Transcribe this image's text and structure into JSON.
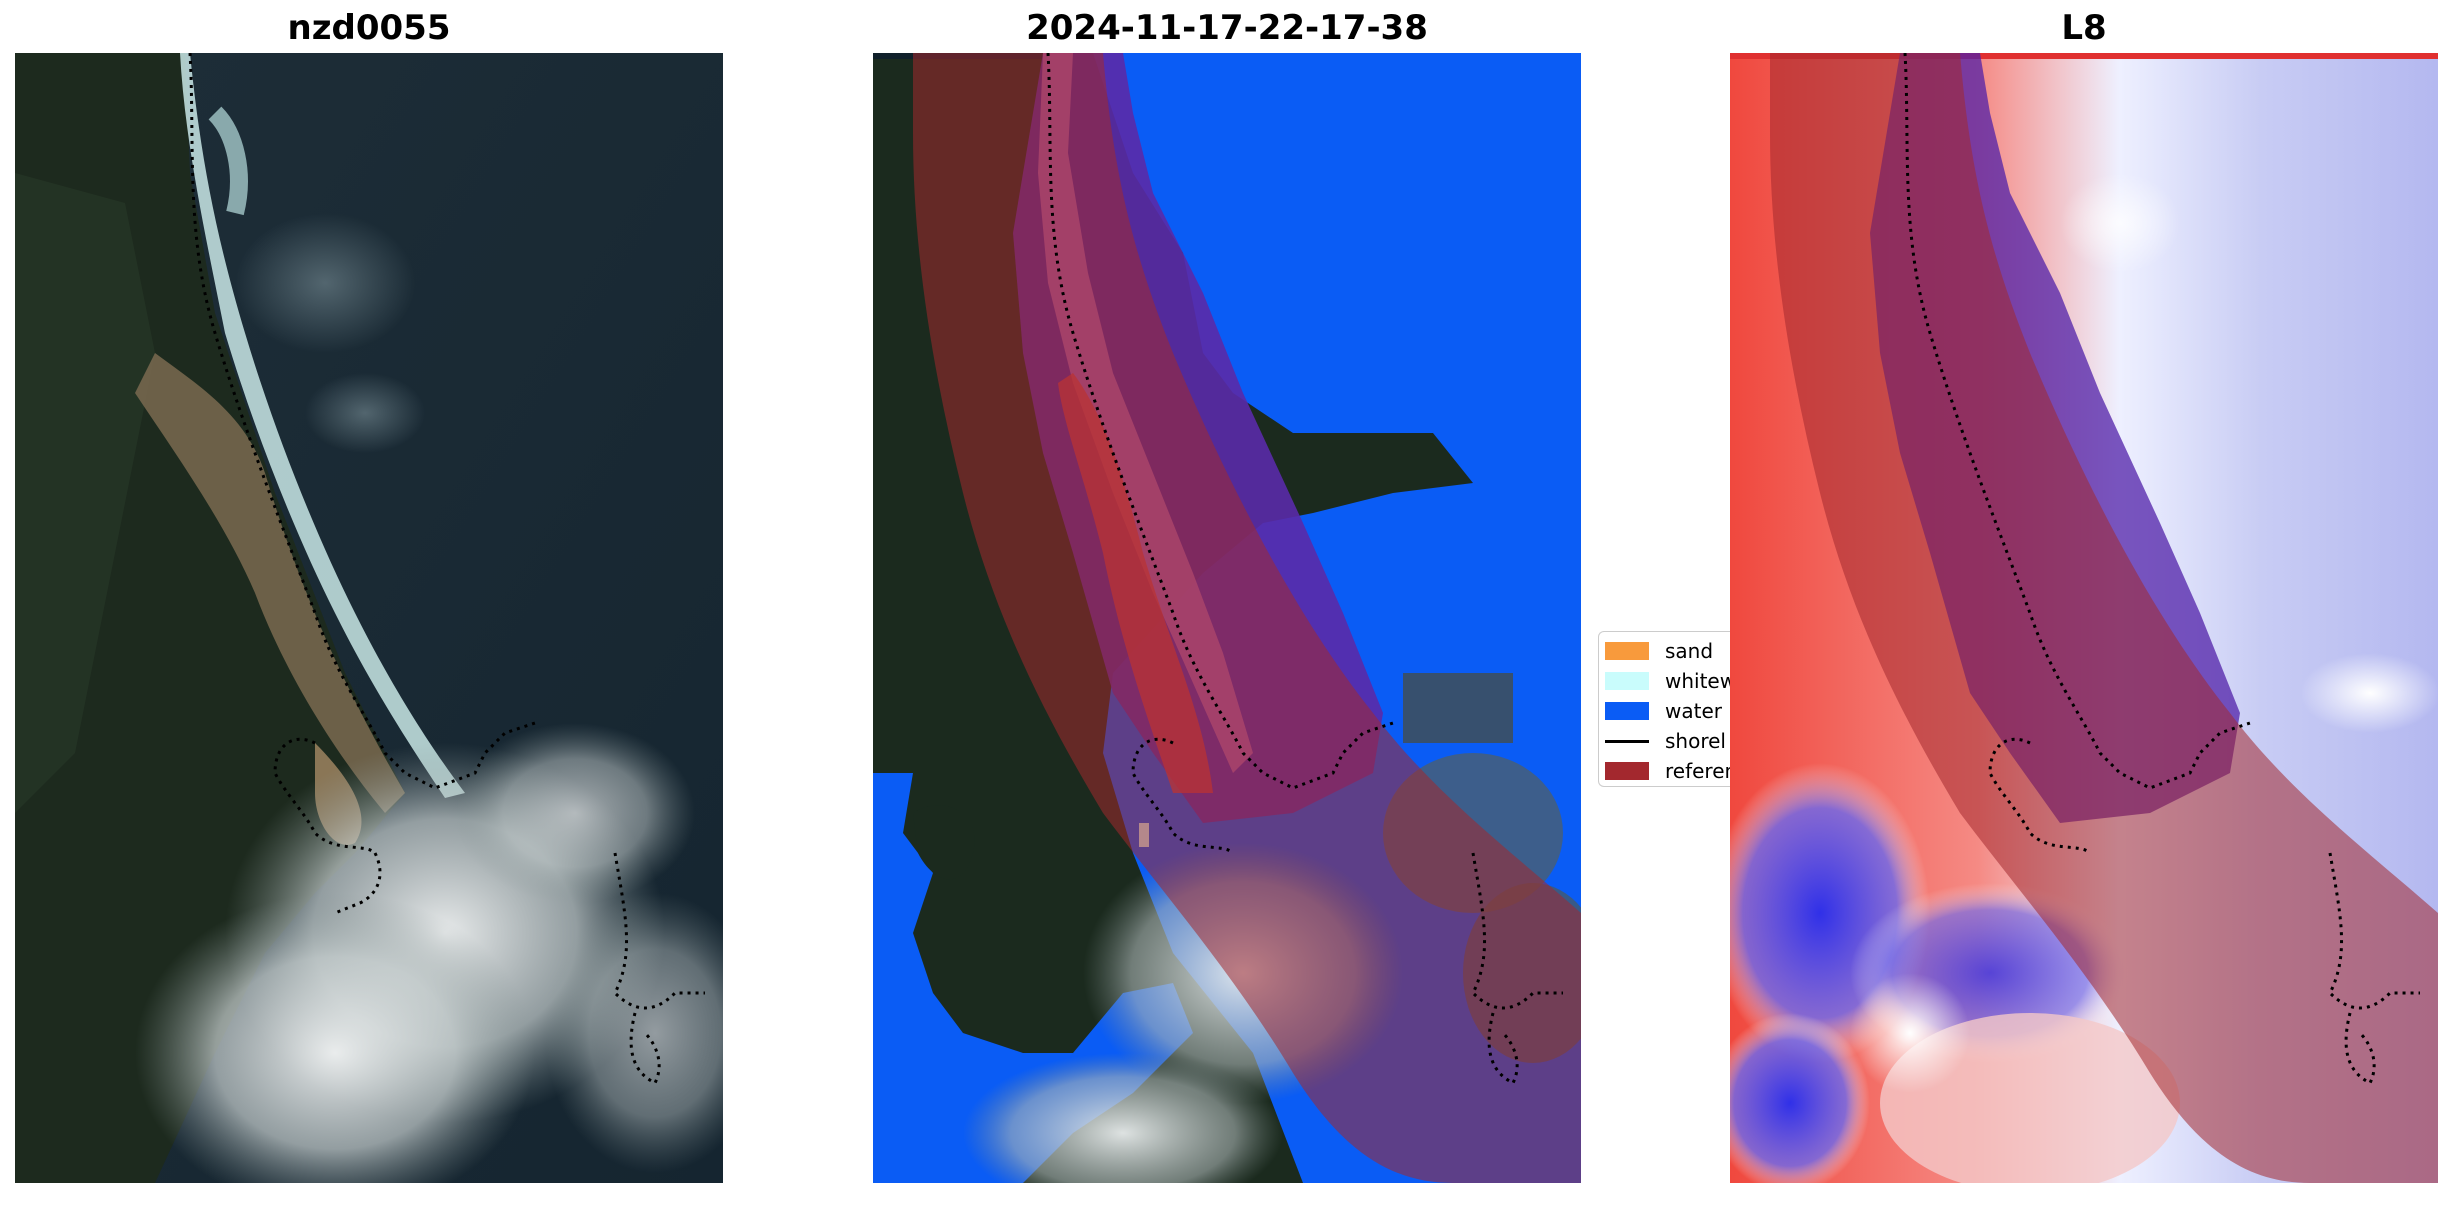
{
  "panels": [
    {
      "title": "nzd0055"
    },
    {
      "title": "2024-11-17-22-17-38"
    },
    {
      "title": "L8"
    }
  ],
  "legend": {
    "items": [
      {
        "label": "sand",
        "color": "#f89a3c",
        "kind": "patch"
      },
      {
        "label": "whitew",
        "color": "#c9fcfc",
        "kind": "patch"
      },
      {
        "label": "water",
        "color": "#0a5cf5",
        "kind": "patch"
      },
      {
        "label": "shorel",
        "color": "#000000",
        "kind": "line"
      },
      {
        "label": "referen",
        "color": "#a3282e",
        "kind": "patch"
      }
    ]
  },
  "colors": {
    "water_class": "#0a5cf5",
    "reference_band": "#a3282e",
    "sand": "#f89a3c"
  }
}
